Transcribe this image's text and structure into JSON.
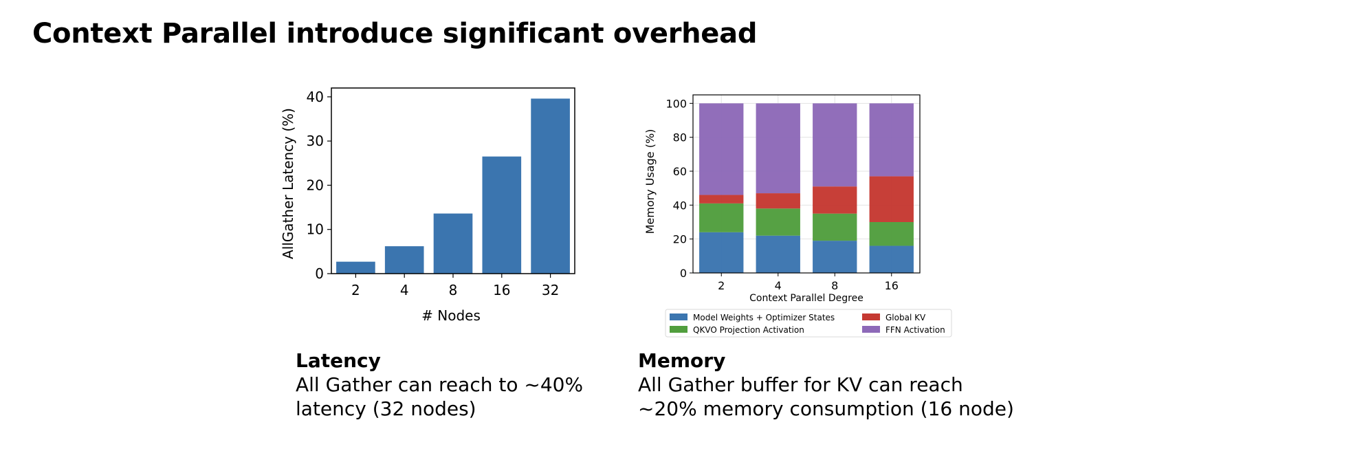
{
  "slide": {
    "title": "Context Parallel introduce significant overhead"
  },
  "chart_data": [
    {
      "type": "bar",
      "title": "",
      "xlabel": "# Nodes",
      "ylabel": "AllGather Latency (%)",
      "categories": [
        "2",
        "4",
        "8",
        "16",
        "32"
      ],
      "values": [
        2.7,
        6.2,
        13.6,
        26.5,
        39.6
      ],
      "ylim": [
        0,
        42
      ],
      "yticks": [
        0,
        10,
        20,
        30,
        40
      ],
      "color": "#3b75af",
      "grid": false
    },
    {
      "type": "bar",
      "stacked": true,
      "title": "",
      "xlabel": "Context Parallel Degree",
      "ylabel": "Memory Usage (%)",
      "categories": [
        "2",
        "4",
        "8",
        "16"
      ],
      "ylim": [
        0,
        105
      ],
      "yticks": [
        0,
        20,
        40,
        60,
        80,
        100
      ],
      "grid": true,
      "legend_position": "bottom",
      "series": [
        {
          "name": "Model Weights + Optimizer States",
          "color": "#3b75af",
          "values": [
            24,
            22,
            19,
            16
          ]
        },
        {
          "name": "QKVO Projection Activation",
          "color": "#519e3e",
          "values": [
            17,
            16,
            16,
            14
          ]
        },
        {
          "name": "Global KV",
          "color": "#c53932",
          "values": [
            5,
            9,
            16,
            27
          ]
        },
        {
          "name": "FFN Activation",
          "color": "#8d69b8",
          "values": [
            54,
            53,
            49,
            43
          ]
        }
      ]
    }
  ],
  "captions": {
    "latency": {
      "heading": "Latency",
      "line1": "All Gather can reach to ~40%",
      "line2": "latency (32 nodes)"
    },
    "memory": {
      "heading": "Memory",
      "line1": "All Gather buffer for KV can reach",
      "line2": "~20% memory consumption (16 node)"
    }
  }
}
